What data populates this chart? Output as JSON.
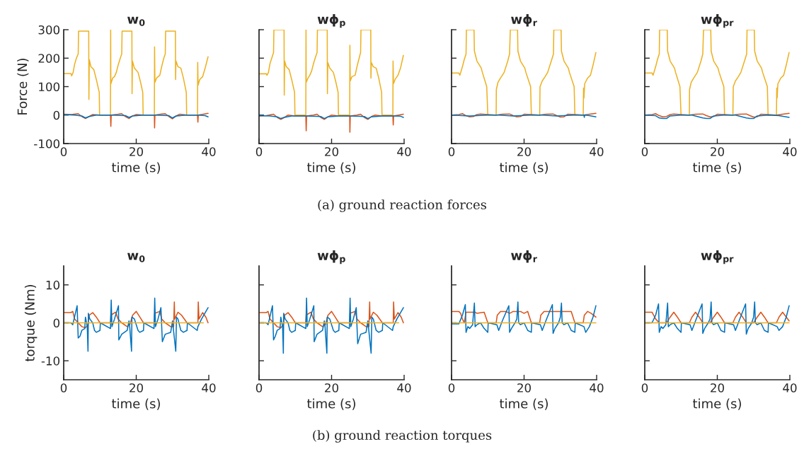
{
  "chart_data": [
    {
      "type": "line",
      "title": "w$_{0}$",
      "xlabel": "time (s)",
      "ylabel": "Force (N)",
      "xlim": [
        0,
        40
      ],
      "xticks": [
        0,
        20,
        40
      ],
      "ylim": [
        -100,
        300
      ],
      "yticks": [
        -100,
        0,
        100,
        200,
        300
      ],
      "annotations": [
        "(a) ground reaction forces"
      ],
      "series": [
        {
          "color": "#edb120",
          "x": [
            0,
            2,
            2.2,
            2.6,
            3,
            3.5,
            4,
            4.1,
            6.9,
            6.95,
            7.05,
            7.5,
            8.3,
            9,
            9.8,
            9.9,
            12.9,
            12.95,
            13.0,
            13.5,
            14,
            14.5,
            15,
            15.6,
            16,
            16.1,
            18.8,
            18.85,
            18.95,
            19.5,
            20.5,
            21.2,
            21.8,
            21.9,
            25.0,
            25.05,
            25.15,
            25.6,
            26.5,
            27,
            27.6,
            28,
            28.1,
            30.8,
            30.85,
            30.95,
            31.5,
            32.3,
            33,
            33.8,
            33.9,
            36.9,
            36.95,
            37.05,
            37.5,
            38.3,
            39,
            39.8
          ],
          "values": [
            146,
            146,
            138,
            150,
            178,
            200,
            215,
            295,
            295,
            55,
            195,
            170,
            160,
            125,
            80,
            0,
            0,
            300,
            110,
            130,
            135,
            150,
            175,
            200,
            215,
            295,
            295,
            75,
            190,
            165,
            150,
            115,
            80,
            0,
            0,
            240,
            115,
            130,
            140,
            170,
            200,
            215,
            295,
            295,
            125,
            190,
            170,
            165,
            130,
            80,
            0,
            0,
            185,
            105,
            125,
            135,
            165,
            205
          ]
        },
        {
          "color": "#d95319",
          "x": [
            0,
            2,
            4,
            5,
            6,
            7,
            8,
            10,
            12.9,
            13,
            13.1,
            15,
            16,
            17,
            18,
            19,
            20,
            22,
            25,
            25.05,
            25.15,
            27,
            28,
            29,
            30,
            31,
            32,
            34,
            36.9,
            37,
            37.1,
            38.5,
            39.8
          ],
          "values": [
            3,
            2,
            5,
            -5,
            -12,
            -5,
            2,
            0,
            0,
            -40,
            0,
            3,
            5,
            -5,
            -12,
            -3,
            2,
            0,
            0,
            -45,
            0,
            4,
            5,
            -5,
            -13,
            -3,
            3,
            0,
            0,
            -25,
            0,
            3,
            6
          ]
        },
        {
          "color": "#0072bd",
          "x": [
            0,
            3,
            5,
            6,
            7,
            9,
            13,
            17,
            18,
            19,
            22,
            25,
            29,
            30,
            31,
            34,
            37,
            39,
            39.8
          ],
          "values": [
            2,
            0,
            -3,
            -10,
            -5,
            0,
            0,
            -2,
            -8,
            -3,
            0,
            0,
            -2,
            -10,
            -3,
            0,
            0,
            -2,
            -6
          ]
        }
      ]
    },
    {
      "type": "line",
      "title": "wϕ$_{p}$",
      "xlabel": "time (s)",
      "tick_labels": "x",
      "xlim": [
        0,
        40
      ],
      "xticks": [
        0,
        20,
        40
      ],
      "ylim": [
        -100,
        300
      ],
      "yticks": [
        -100,
        0,
        100,
        200,
        300
      ],
      "series": [
        {
          "color": "#edb120",
          "x": [
            0,
            2,
            2.2,
            2.6,
            3,
            3.5,
            4,
            4.1,
            6.9,
            6.95,
            7.05,
            7.5,
            8.3,
            9,
            9.8,
            9.9,
            12.9,
            12.95,
            13.0,
            13.5,
            14,
            14.5,
            15,
            15.6,
            16,
            16.1,
            18.8,
            18.85,
            18.95,
            19.5,
            20.5,
            21.2,
            21.8,
            21.9,
            25.0,
            25.05,
            25.15,
            25.6,
            26.5,
            27,
            27.6,
            28,
            28.1,
            30.8,
            30.85,
            30.95,
            31.5,
            32.3,
            33,
            33.8,
            33.9,
            36.9,
            36.95,
            37.05,
            37.5,
            38.3,
            39,
            39.8
          ],
          "values": [
            145,
            145,
            140,
            150,
            180,
            200,
            220,
            300,
            300,
            70,
            190,
            170,
            160,
            125,
            80,
            0,
            0,
            300,
            115,
            130,
            140,
            155,
            180,
            205,
            220,
            300,
            300,
            75,
            185,
            165,
            150,
            115,
            80,
            0,
            0,
            245,
            120,
            135,
            140,
            170,
            200,
            220,
            300,
            300,
            130,
            185,
            170,
            165,
            130,
            80,
            0,
            0,
            190,
            110,
            125,
            140,
            165,
            210
          ]
        },
        {
          "color": "#d95319",
          "x": [
            0,
            2,
            4,
            5,
            6,
            7,
            8,
            10,
            12.9,
            13,
            13.1,
            15,
            16,
            17,
            18,
            19,
            20,
            22,
            25,
            25.05,
            25.15,
            27,
            28,
            29,
            30,
            31,
            32,
            34,
            36.9,
            37,
            37.1,
            38.5,
            39.8
          ],
          "values": [
            -3,
            -2,
            3,
            -8,
            -15,
            -8,
            0,
            -3,
            -3,
            -55,
            -3,
            0,
            3,
            -8,
            -15,
            -6,
            0,
            -3,
            -3,
            -60,
            -3,
            0,
            3,
            -8,
            -15,
            -5,
            0,
            -3,
            -3,
            -35,
            -3,
            0,
            3
          ]
        },
        {
          "color": "#0072bd",
          "x": [
            0,
            3,
            5,
            6,
            7,
            9,
            13,
            17,
            18,
            19,
            22,
            25,
            29,
            30,
            31,
            34,
            37,
            39,
            39.8
          ],
          "values": [
            -2,
            -3,
            -6,
            -12,
            -8,
            -3,
            -3,
            -5,
            -12,
            -6,
            -3,
            -3,
            -5,
            -12,
            -6,
            -3,
            -3,
            -4,
            -8
          ]
        }
      ]
    },
    {
      "type": "line",
      "title": "wϕ$_{r}$",
      "xlabel": "time (s)",
      "tick_labels": "x",
      "xlim": [
        0,
        40
      ],
      "xticks": [
        0,
        20,
        40
      ],
      "ylim": [
        -100,
        300
      ],
      "yticks": [
        -100,
        0,
        100,
        200,
        300
      ],
      "series": [
        {
          "color": "#edb120",
          "x": [
            0,
            2,
            2.3,
            3,
            3.5,
            4,
            4.1,
            6.2,
            6.3,
            7,
            8.2,
            8.5,
            9.7,
            10,
            12.3,
            12.35,
            12.8,
            13.5,
            14.5,
            15.5,
            16,
            16.2,
            18.2,
            18.3,
            19,
            20.2,
            20.5,
            21.8,
            22,
            24.3,
            24.4,
            25,
            25.8,
            26.5,
            27.5,
            28.1,
            28.2,
            30.2,
            30.3,
            31,
            32.2,
            32.5,
            33.8,
            34,
            36.3,
            36.4,
            36.5,
            36.7,
            37.5,
            38.3,
            39,
            39.8
          ],
          "values": [
            148,
            148,
            140,
            170,
            195,
            215,
            300,
            300,
            225,
            190,
            165,
            150,
            100,
            0,
            0,
            90,
            115,
            130,
            150,
            190,
            215,
            300,
            300,
            225,
            190,
            165,
            150,
            100,
            0,
            0,
            100,
            120,
            135,
            150,
            190,
            215,
            300,
            300,
            225,
            190,
            165,
            150,
            100,
            0,
            0,
            95,
            60,
            110,
            130,
            140,
            175,
            220
          ]
        },
        {
          "color": "#d95319",
          "x": [
            0,
            2,
            3,
            4,
            5,
            6,
            7,
            8,
            10,
            12.3,
            14,
            16,
            17,
            18,
            19,
            20,
            22,
            24.3,
            26,
            28,
            29,
            30,
            31,
            32,
            34,
            36.3,
            38,
            39.8
          ],
          "values": [
            0,
            2,
            5,
            -2,
            -6,
            -5,
            2,
            4,
            2,
            0,
            3,
            4,
            -2,
            -6,
            -5,
            3,
            2,
            0,
            3,
            4,
            -2,
            -7,
            -6,
            3,
            2,
            0,
            3,
            6
          ]
        },
        {
          "color": "#0072bd",
          "x": [
            0,
            3,
            5,
            7,
            10,
            13,
            17,
            19,
            22,
            25,
            29,
            31,
            34,
            36.5,
            36.6,
            36.7,
            38,
            39.8
          ],
          "values": [
            0,
            -2,
            -3,
            -2,
            0,
            0,
            -3,
            -2,
            0,
            0,
            -3,
            -2,
            0,
            0,
            -8,
            0,
            -2,
            -6
          ]
        }
      ]
    },
    {
      "type": "line",
      "title": "wϕ$_{pr}$",
      "xlabel": "time (s)",
      "tick_labels": "x",
      "xlim": [
        0,
        40
      ],
      "xticks": [
        0,
        20,
        40
      ],
      "ylim": [
        -100,
        300
      ],
      "yticks": [
        -100,
        0,
        100,
        200,
        300
      ],
      "series": [
        {
          "color": "#edb120",
          "x": [
            0,
            2,
            2.3,
            3,
            3.5,
            4,
            4.1,
            6.2,
            6.3,
            7,
            8.2,
            8.5,
            9.7,
            10,
            12.3,
            12.35,
            12.8,
            13.5,
            14.5,
            15.5,
            16,
            16.2,
            18.2,
            18.3,
            19,
            20.2,
            20.5,
            21.8,
            22,
            24.3,
            24.4,
            25,
            25.8,
            26.5,
            27.5,
            28.1,
            28.2,
            30.2,
            30.3,
            31,
            32.2,
            32.5,
            33.8,
            34,
            36.3,
            36.4,
            36.5,
            36.7,
            37.5,
            38.3,
            39,
            39.8
          ],
          "values": [
            148,
            148,
            140,
            170,
            195,
            215,
            300,
            300,
            225,
            190,
            165,
            150,
            100,
            0,
            0,
            90,
            115,
            130,
            150,
            190,
            215,
            300,
            300,
            225,
            190,
            165,
            150,
            100,
            0,
            0,
            100,
            120,
            135,
            150,
            190,
            215,
            300,
            300,
            225,
            190,
            165,
            150,
            100,
            0,
            0,
            95,
            60,
            110,
            130,
            140,
            175,
            220
          ]
        },
        {
          "color": "#d95319",
          "x": [
            0,
            2,
            3,
            4,
            5,
            6,
            7,
            8,
            10,
            12.3,
            14,
            16,
            17,
            18,
            19,
            20,
            22,
            24.3,
            26,
            28,
            29,
            30,
            31,
            32,
            34,
            36.3,
            38,
            39.8
          ],
          "values": [
            0,
            2,
            5,
            -2,
            -6,
            -5,
            2,
            4,
            2,
            0,
            3,
            4,
            -2,
            -6,
            -5,
            3,
            2,
            0,
            3,
            4,
            -2,
            -7,
            -6,
            3,
            2,
            0,
            3,
            6
          ]
        },
        {
          "color": "#0072bd",
          "x": [
            0,
            3,
            4,
            5,
            6,
            7,
            10,
            13,
            16,
            17,
            18,
            19,
            22,
            25,
            28,
            29,
            30,
            31,
            34,
            37,
            39.8
          ],
          "values": [
            0,
            -2,
            -10,
            -12,
            -12,
            -3,
            0,
            0,
            -10,
            -12,
            -12,
            -3,
            0,
            0,
            -10,
            -12,
            -12,
            -3,
            0,
            -2,
            -8
          ]
        }
      ]
    },
    {
      "type": "line",
      "title": "w$_{0}$",
      "xlabel": "time (s)",
      "ylabel": "torque (Nm)",
      "xlim": [
        0,
        40
      ],
      "xticks": [
        0,
        20,
        40
      ],
      "ylim": [
        -15,
        15
      ],
      "yticks": [
        -10,
        0,
        10
      ],
      "annotations": [
        "(b) ground reaction torques"
      ],
      "series": [
        {
          "color": "#d95319",
          "x": [
            0,
            2,
            2.5,
            3,
            4,
            5,
            6,
            6.7,
            7,
            8,
            9,
            10,
            12.9,
            13,
            14.3,
            15,
            16,
            17.5,
            18.3,
            19,
            20,
            21,
            22,
            25,
            25.1,
            26.5,
            27,
            28,
            29.5,
            30.3,
            30.5,
            30.6,
            31.5,
            32.5,
            34,
            37,
            37.1,
            37.3,
            38.3,
            39.2,
            39.8
          ],
          "values": [
            2.7,
            2.7,
            3,
            1,
            0,
            -1,
            -1.3,
            -0.5,
            2,
            2.7,
            1.5,
            0,
            0,
            2,
            2.8,
            1,
            0,
            -1,
            -0.3,
            2,
            3,
            1.5,
            0,
            0,
            2.5,
            3,
            1,
            0,
            -1,
            -1,
            5.5,
            1,
            2.8,
            2,
            0,
            0,
            5.5,
            1,
            2.7,
            1.5,
            0
          ]
        },
        {
          "color": "#0072bd",
          "x": [
            0,
            2,
            2.5,
            3.7,
            4,
            4.5,
            5,
            5.8,
            6,
            6.5,
            6.7,
            6.8,
            7.2,
            8,
            8.5,
            9,
            10,
            10.1,
            12.9,
            13.1,
            13.3,
            14,
            15.1,
            15.2,
            16,
            17.5,
            18,
            18.2,
            18.7,
            18.8,
            19.5,
            20.5,
            21,
            22,
            22.1,
            24.9,
            25.1,
            25.3,
            26,
            26.8,
            27.2,
            28,
            29.5,
            30,
            30.9,
            31.1,
            31.5,
            32.3,
            33,
            34,
            34.1,
            36.8,
            37,
            38,
            39.8
          ],
          "values": [
            0,
            0,
            -0.5,
            4.5,
            -4,
            -3.5,
            -2,
            -1.5,
            1.5,
            -1,
            -7.5,
            2.5,
            1,
            0,
            -2,
            -2.5,
            -2,
            0,
            -1.5,
            6,
            -1,
            1,
            4.5,
            -4.5,
            -3,
            -2,
            0.5,
            -1,
            -7.5,
            1.5,
            1,
            -2,
            -2.5,
            -2,
            0,
            -1.5,
            6.5,
            -1,
            1,
            4,
            -5,
            -3,
            -2.5,
            0.5,
            -7.5,
            1.5,
            1,
            -2,
            -2.5,
            -2,
            0,
            -2,
            -1,
            1,
            4
          ]
        },
        {
          "color": "#edb120",
          "x": [
            0,
            10,
            20,
            30,
            38.5
          ],
          "values": [
            0,
            0,
            0,
            0,
            0
          ]
        }
      ]
    },
    {
      "type": "line",
      "title": "wϕ$_{p}$",
      "xlabel": "time (s)",
      "tick_labels": "x",
      "xlim": [
        0,
        40
      ],
      "xticks": [
        0,
        20,
        40
      ],
      "ylim": [
        -15,
        15
      ],
      "yticks": [
        -10,
        0,
        10
      ],
      "series": [
        {
          "color": "#d95319",
          "x": [
            0,
            2,
            2.5,
            3,
            4,
            5,
            6,
            6.7,
            7,
            8,
            9,
            10,
            12.9,
            13,
            14.3,
            15,
            16,
            17.5,
            18.3,
            19,
            20,
            21,
            22,
            25,
            25.1,
            26.5,
            27,
            28,
            29.5,
            30.3,
            30.5,
            30.6,
            31.5,
            32.5,
            34,
            37,
            37.1,
            37.3,
            38.3,
            39.2,
            39.8
          ],
          "values": [
            2.7,
            2.7,
            3,
            1,
            0,
            -1,
            -1.3,
            -0.5,
            2,
            2.7,
            1.5,
            0,
            0,
            2,
            2.8,
            1,
            0,
            -1,
            -0.5,
            2,
            3,
            1.5,
            0,
            0,
            2.5,
            3,
            1,
            0,
            -1,
            -1,
            5.5,
            1,
            2.8,
            2,
            0,
            0,
            5.5,
            1,
            2.7,
            1.5,
            0
          ]
        },
        {
          "color": "#0072bd",
          "x": [
            0,
            2,
            2.5,
            3.7,
            4,
            4.5,
            5,
            5.8,
            6,
            6.5,
            6.7,
            6.8,
            7.2,
            8,
            8.5,
            9,
            10,
            10.1,
            12.9,
            13.1,
            13.3,
            14,
            15.1,
            15.2,
            16,
            17.5,
            18,
            18.2,
            18.7,
            18.8,
            19.5,
            20.5,
            21,
            22,
            22.1,
            24.9,
            25.1,
            25.3,
            26,
            26.8,
            27.2,
            28,
            29.5,
            30,
            30.9,
            31.1,
            31.5,
            32.3,
            33,
            34,
            34.1,
            36.8,
            37,
            38,
            39.8
          ],
          "values": [
            0,
            0,
            -0.5,
            4.5,
            -4.5,
            -3.5,
            -2,
            -1.5,
            1.5,
            -1,
            -8,
            2.5,
            1,
            0,
            -2,
            -2.5,
            -2,
            0,
            -1.5,
            6.5,
            -1,
            1,
            4.5,
            -5,
            -3,
            -2,
            0.5,
            -1,
            -8,
            1.5,
            1,
            -2,
            -2.5,
            -2,
            0,
            -1.5,
            6.5,
            -1,
            1,
            4,
            -5.5,
            -3,
            -2.5,
            0.5,
            -8,
            1.5,
            1,
            -2,
            -2.5,
            -2,
            0,
            -2,
            -1,
            1,
            4
          ]
        },
        {
          "color": "#edb120",
          "x": [
            0,
            10,
            20,
            30,
            38.5
          ],
          "values": [
            0,
            0,
            0,
            0,
            0
          ]
        }
      ]
    },
    {
      "type": "line",
      "title": "wϕ$_{r}$",
      "xlabel": "time (s)",
      "tick_labels": "x",
      "xlim": [
        0,
        40
      ],
      "xticks": [
        0,
        20,
        40
      ],
      "ylim": [
        -15,
        15
      ],
      "yticks": [
        -10,
        0,
        10
      ],
      "series": [
        {
          "color": "#d95319",
          "x": [
            0,
            2,
            2.5,
            3,
            3.5,
            4,
            6.5,
            7,
            9,
            10,
            12.3,
            12.6,
            13.5,
            15,
            16,
            17,
            19,
            20,
            21,
            22,
            24.3,
            24.6,
            25.5,
            28,
            30,
            32,
            33,
            34,
            36.3,
            36.6,
            37.5,
            38.5,
            39.8
          ],
          "values": [
            3,
            3,
            2.5,
            1,
            0,
            2.8,
            2.8,
            2.5,
            2.8,
            0,
            0,
            2,
            3,
            3,
            2.5,
            3,
            3,
            2.5,
            3,
            0,
            0,
            2,
            3,
            3,
            3,
            3,
            3,
            0,
            0,
            2,
            3,
            2.5,
            1.5
          ]
        },
        {
          "color": "#0072bd",
          "x": [
            0,
            2,
            3,
            3.8,
            4,
            4.5,
            5,
            5.8,
            6.3,
            6.5,
            7,
            8,
            9,
            10,
            10.1,
            12.5,
            13,
            14,
            15.8,
            16,
            16.5,
            17.5,
            18,
            18.3,
            18.5,
            19,
            20,
            21,
            22,
            22.1,
            24.5,
            25,
            26,
            27.8,
            28,
            28.5,
            29.5,
            30,
            30.3,
            30.5,
            31,
            32,
            33,
            34,
            34.1,
            36.5,
            37,
            38,
            39,
            39.8
          ],
          "values": [
            -0.3,
            -0.3,
            2,
            4.8,
            -2.5,
            -1,
            -1.5,
            -0.5,
            5.2,
            -1,
            -0.5,
            0,
            -1.5,
            -2.5,
            0,
            -0.5,
            -2,
            0.5,
            4.5,
            -2.5,
            -1.5,
            0,
            1,
            5.5,
            0,
            -0.5,
            0,
            -2,
            -2.5,
            0,
            -0.5,
            -2,
            0.5,
            4.8,
            -2.8,
            -1.5,
            0,
            1.5,
            5.2,
            0,
            -0.5,
            0,
            -2,
            -2.5,
            0,
            -1,
            -2.5,
            -1,
            1.5,
            4.5
          ]
        },
        {
          "color": "#edb120",
          "x": [
            0,
            10,
            20,
            30,
            39.8
          ],
          "values": [
            0,
            0,
            0,
            0,
            0
          ]
        }
      ]
    },
    {
      "type": "line",
      "title": "wϕ$_{pr}$",
      "xlabel": "time (s)",
      "tick_labels": "x",
      "xlim": [
        0,
        40
      ],
      "xticks": [
        0,
        20,
        40
      ],
      "ylim": [
        -15,
        15
      ],
      "yticks": [
        -10,
        0,
        10
      ],
      "series": [
        {
          "color": "#d95319",
          "x": [
            0,
            2,
            3,
            4,
            6,
            7,
            8,
            9,
            10,
            12.3,
            13,
            14,
            15,
            16,
            18,
            19,
            20,
            21,
            22,
            24.3,
            25,
            26,
            27,
            28,
            30,
            31,
            32,
            33,
            34,
            36.3,
            37,
            38,
            39.8
          ],
          "values": [
            2.8,
            2.8,
            1,
            0,
            0,
            1.5,
            2.8,
            1.5,
            0,
            0,
            1.5,
            2.8,
            1.5,
            0,
            0,
            1.5,
            2.8,
            1.5,
            0,
            0,
            1.5,
            2.8,
            1.5,
            0,
            0,
            1.5,
            2.8,
            1.5,
            0,
            0,
            1.5,
            2.8,
            0.5
          ]
        },
        {
          "color": "#0072bd",
          "x": [
            0,
            2,
            3,
            3.8,
            4,
            4.5,
            5,
            5.8,
            6.3,
            6.5,
            7,
            8,
            9,
            10,
            10.1,
            12.5,
            13,
            14,
            15.8,
            16,
            16.5,
            17.5,
            18,
            18.3,
            18.5,
            19,
            20,
            21,
            22,
            22.1,
            24.5,
            25,
            26,
            27.8,
            28,
            28.5,
            29.5,
            30,
            30.3,
            30.5,
            31,
            32,
            33,
            34,
            34.1,
            36.5,
            37,
            38,
            39,
            39.8
          ],
          "values": [
            0,
            0,
            2,
            5,
            -2.5,
            -1,
            -1.5,
            -0.5,
            5.2,
            -1,
            -0.5,
            0,
            -1.5,
            -2.5,
            0,
            -0.5,
            -2,
            0.5,
            5,
            -2.8,
            -1.5,
            0,
            1,
            5.5,
            0,
            -0.5,
            0,
            -2,
            -2.5,
            0,
            -0.5,
            -2,
            0.5,
            5,
            -3,
            -1.5,
            0,
            1.5,
            5.5,
            0,
            -0.5,
            0,
            -2,
            -2.5,
            0,
            -1,
            -2,
            -1,
            1.5,
            4.5
          ]
        },
        {
          "color": "#edb120",
          "x": [
            0,
            10,
            20,
            30,
            39.8
          ],
          "values": [
            0,
            0,
            0,
            0,
            0
          ]
        }
      ]
    }
  ]
}
